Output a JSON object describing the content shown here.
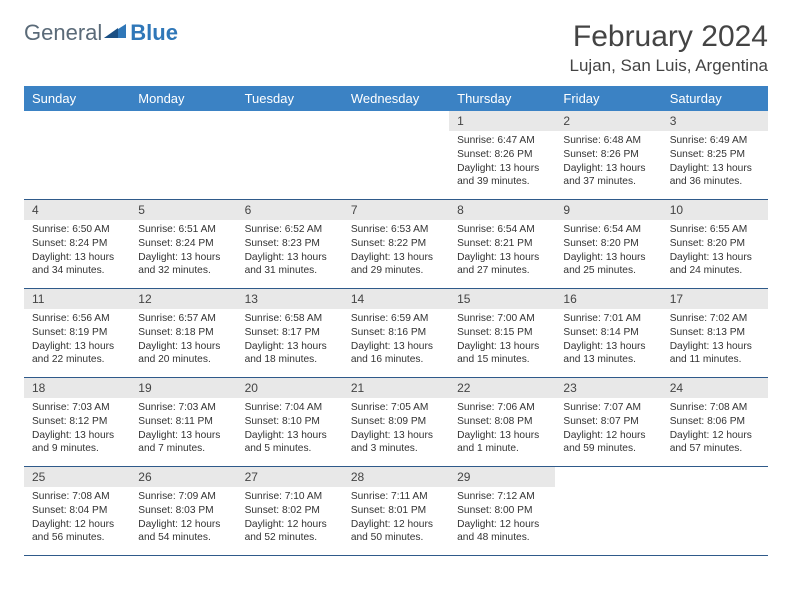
{
  "brand": {
    "part1": "General",
    "part2": "Blue"
  },
  "title": "February 2024",
  "location": "Lujan, San Luis, Argentina",
  "colors": {
    "header_bg": "#3b82c4",
    "header_fg": "#ffffff",
    "daynum_bg": "#e8e8e8",
    "rule": "#2f5a8a",
    "brand_gray": "#5a6a78",
    "brand_blue": "#2f77b8"
  },
  "weekdays": [
    "Sunday",
    "Monday",
    "Tuesday",
    "Wednesday",
    "Thursday",
    "Friday",
    "Saturday"
  ],
  "weeks": [
    [
      {
        "n": "",
        "sr": "",
        "ss": "",
        "dl": ""
      },
      {
        "n": "",
        "sr": "",
        "ss": "",
        "dl": ""
      },
      {
        "n": "",
        "sr": "",
        "ss": "",
        "dl": ""
      },
      {
        "n": "",
        "sr": "",
        "ss": "",
        "dl": ""
      },
      {
        "n": "1",
        "sr": "Sunrise: 6:47 AM",
        "ss": "Sunset: 8:26 PM",
        "dl": "Daylight: 13 hours and 39 minutes."
      },
      {
        "n": "2",
        "sr": "Sunrise: 6:48 AM",
        "ss": "Sunset: 8:26 PM",
        "dl": "Daylight: 13 hours and 37 minutes."
      },
      {
        "n": "3",
        "sr": "Sunrise: 6:49 AM",
        "ss": "Sunset: 8:25 PM",
        "dl": "Daylight: 13 hours and 36 minutes."
      }
    ],
    [
      {
        "n": "4",
        "sr": "Sunrise: 6:50 AM",
        "ss": "Sunset: 8:24 PM",
        "dl": "Daylight: 13 hours and 34 minutes."
      },
      {
        "n": "5",
        "sr": "Sunrise: 6:51 AM",
        "ss": "Sunset: 8:24 PM",
        "dl": "Daylight: 13 hours and 32 minutes."
      },
      {
        "n": "6",
        "sr": "Sunrise: 6:52 AM",
        "ss": "Sunset: 8:23 PM",
        "dl": "Daylight: 13 hours and 31 minutes."
      },
      {
        "n": "7",
        "sr": "Sunrise: 6:53 AM",
        "ss": "Sunset: 8:22 PM",
        "dl": "Daylight: 13 hours and 29 minutes."
      },
      {
        "n": "8",
        "sr": "Sunrise: 6:54 AM",
        "ss": "Sunset: 8:21 PM",
        "dl": "Daylight: 13 hours and 27 minutes."
      },
      {
        "n": "9",
        "sr": "Sunrise: 6:54 AM",
        "ss": "Sunset: 8:20 PM",
        "dl": "Daylight: 13 hours and 25 minutes."
      },
      {
        "n": "10",
        "sr": "Sunrise: 6:55 AM",
        "ss": "Sunset: 8:20 PM",
        "dl": "Daylight: 13 hours and 24 minutes."
      }
    ],
    [
      {
        "n": "11",
        "sr": "Sunrise: 6:56 AM",
        "ss": "Sunset: 8:19 PM",
        "dl": "Daylight: 13 hours and 22 minutes."
      },
      {
        "n": "12",
        "sr": "Sunrise: 6:57 AM",
        "ss": "Sunset: 8:18 PM",
        "dl": "Daylight: 13 hours and 20 minutes."
      },
      {
        "n": "13",
        "sr": "Sunrise: 6:58 AM",
        "ss": "Sunset: 8:17 PM",
        "dl": "Daylight: 13 hours and 18 minutes."
      },
      {
        "n": "14",
        "sr": "Sunrise: 6:59 AM",
        "ss": "Sunset: 8:16 PM",
        "dl": "Daylight: 13 hours and 16 minutes."
      },
      {
        "n": "15",
        "sr": "Sunrise: 7:00 AM",
        "ss": "Sunset: 8:15 PM",
        "dl": "Daylight: 13 hours and 15 minutes."
      },
      {
        "n": "16",
        "sr": "Sunrise: 7:01 AM",
        "ss": "Sunset: 8:14 PM",
        "dl": "Daylight: 13 hours and 13 minutes."
      },
      {
        "n": "17",
        "sr": "Sunrise: 7:02 AM",
        "ss": "Sunset: 8:13 PM",
        "dl": "Daylight: 13 hours and 11 minutes."
      }
    ],
    [
      {
        "n": "18",
        "sr": "Sunrise: 7:03 AM",
        "ss": "Sunset: 8:12 PM",
        "dl": "Daylight: 13 hours and 9 minutes."
      },
      {
        "n": "19",
        "sr": "Sunrise: 7:03 AM",
        "ss": "Sunset: 8:11 PM",
        "dl": "Daylight: 13 hours and 7 minutes."
      },
      {
        "n": "20",
        "sr": "Sunrise: 7:04 AM",
        "ss": "Sunset: 8:10 PM",
        "dl": "Daylight: 13 hours and 5 minutes."
      },
      {
        "n": "21",
        "sr": "Sunrise: 7:05 AM",
        "ss": "Sunset: 8:09 PM",
        "dl": "Daylight: 13 hours and 3 minutes."
      },
      {
        "n": "22",
        "sr": "Sunrise: 7:06 AM",
        "ss": "Sunset: 8:08 PM",
        "dl": "Daylight: 13 hours and 1 minute."
      },
      {
        "n": "23",
        "sr": "Sunrise: 7:07 AM",
        "ss": "Sunset: 8:07 PM",
        "dl": "Daylight: 12 hours and 59 minutes."
      },
      {
        "n": "24",
        "sr": "Sunrise: 7:08 AM",
        "ss": "Sunset: 8:06 PM",
        "dl": "Daylight: 12 hours and 57 minutes."
      }
    ],
    [
      {
        "n": "25",
        "sr": "Sunrise: 7:08 AM",
        "ss": "Sunset: 8:04 PM",
        "dl": "Daylight: 12 hours and 56 minutes."
      },
      {
        "n": "26",
        "sr": "Sunrise: 7:09 AM",
        "ss": "Sunset: 8:03 PM",
        "dl": "Daylight: 12 hours and 54 minutes."
      },
      {
        "n": "27",
        "sr": "Sunrise: 7:10 AM",
        "ss": "Sunset: 8:02 PM",
        "dl": "Daylight: 12 hours and 52 minutes."
      },
      {
        "n": "28",
        "sr": "Sunrise: 7:11 AM",
        "ss": "Sunset: 8:01 PM",
        "dl": "Daylight: 12 hours and 50 minutes."
      },
      {
        "n": "29",
        "sr": "Sunrise: 7:12 AM",
        "ss": "Sunset: 8:00 PM",
        "dl": "Daylight: 12 hours and 48 minutes."
      },
      {
        "n": "",
        "sr": "",
        "ss": "",
        "dl": ""
      },
      {
        "n": "",
        "sr": "",
        "ss": "",
        "dl": ""
      }
    ]
  ]
}
